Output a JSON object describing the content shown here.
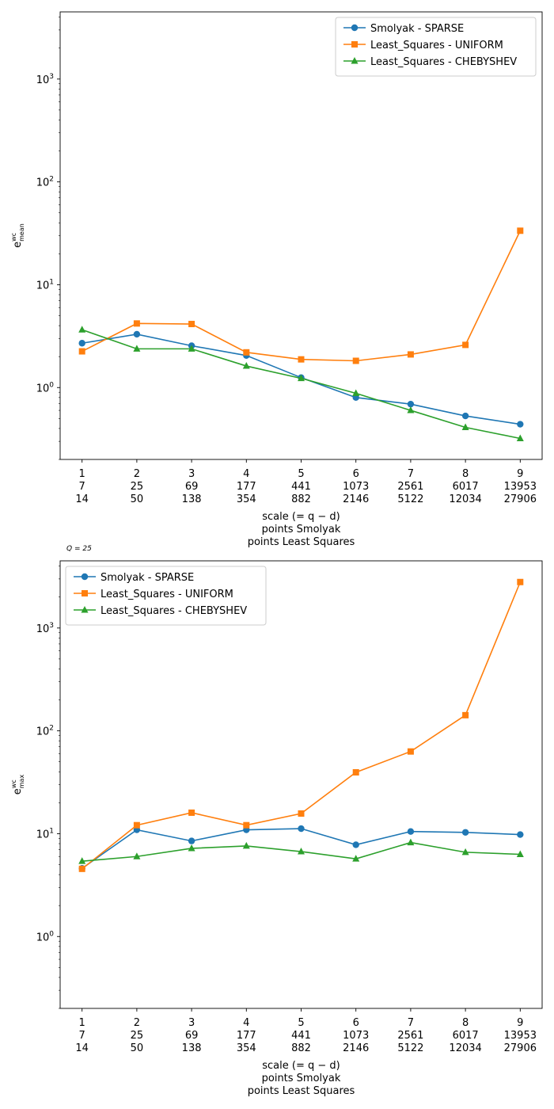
{
  "chart_data": [
    {
      "type": "line",
      "title": "",
      "ylabel_base": "e",
      "ylabel_sup": "wc",
      "ylabel_sub": "mean",
      "yscale": "log",
      "ylim": [
        0.2,
        4500
      ],
      "y_ticks": [
        {
          "value": 1,
          "base": "10",
          "exp": "0"
        },
        {
          "value": 10,
          "base": "10",
          "exp": "1"
        },
        {
          "value": 100,
          "base": "10",
          "exp": "2"
        },
        {
          "value": 1000,
          "base": "10",
          "exp": "3"
        }
      ],
      "x": [
        1,
        2,
        3,
        4,
        5,
        6,
        7,
        8,
        9
      ],
      "x_tick_rows": [
        [
          "1",
          "2",
          "3",
          "4",
          "5",
          "6",
          "7",
          "8",
          "9"
        ],
        [
          "7",
          "25",
          "69",
          "177",
          "441",
          "1073",
          "2561",
          "6017",
          "13953"
        ],
        [
          "14",
          "50",
          "138",
          "354",
          "882",
          "2146",
          "5122",
          "12034",
          "27906"
        ]
      ],
      "xlabel_lines": [
        "scale (= q − d)",
        "points Smolyak",
        "points Least Squares"
      ],
      "legend_position": "upper right",
      "grid": false,
      "series": [
        {
          "name": "Smolyak - SPARSE",
          "marker": "circle",
          "color": "#1f77b4",
          "values": [
            2.7,
            3.3,
            2.55,
            2.05,
            1.25,
            0.8,
            0.69,
            0.53,
            0.44
          ]
        },
        {
          "name": "Least_Squares - UNIFORM",
          "marker": "square",
          "color": "#ff7f0e",
          "values": [
            2.25,
            4.2,
            4.15,
            2.2,
            1.88,
            1.82,
            2.1,
            2.6,
            33.5
          ]
        },
        {
          "name": "Least_Squares - CHEBYSHEV",
          "marker": "triangle",
          "color": "#2ca02c",
          "values": [
            3.65,
            2.38,
            2.38,
            1.62,
            1.23,
            0.88,
            0.6,
            0.41,
            0.32
          ]
        }
      ]
    },
    {
      "type": "line",
      "title": "Q = 25",
      "ylabel_base": "e",
      "ylabel_sup": "wc",
      "ylabel_sub": "max",
      "yscale": "log",
      "ylim": [
        0.2,
        4500
      ],
      "y_ticks": [
        {
          "value": 1,
          "base": "10",
          "exp": "0"
        },
        {
          "value": 10,
          "base": "10",
          "exp": "1"
        },
        {
          "value": 100,
          "base": "10",
          "exp": "2"
        },
        {
          "value": 1000,
          "base": "10",
          "exp": "3"
        }
      ],
      "x": [
        1,
        2,
        3,
        4,
        5,
        6,
        7,
        8,
        9
      ],
      "x_tick_rows": [
        [
          "1",
          "2",
          "3",
          "4",
          "5",
          "6",
          "7",
          "8",
          "9"
        ],
        [
          "7",
          "25",
          "69",
          "177",
          "441",
          "1073",
          "2561",
          "6017",
          "13953"
        ],
        [
          "14",
          "50",
          "138",
          "354",
          "882",
          "2146",
          "5122",
          "12034",
          "27906"
        ]
      ],
      "xlabel_lines": [
        "scale (= q − d)",
        "points Smolyak",
        "points Least Squares"
      ],
      "legend_position": "upper left",
      "grid": false,
      "series": [
        {
          "name": "Smolyak - SPARSE",
          "marker": "circle",
          "color": "#1f77b4",
          "values": [
            4.6,
            10.9,
            8.5,
            10.9,
            11.2,
            7.8,
            10.5,
            10.3,
            9.8
          ]
        },
        {
          "name": "Least_Squares - UNIFORM",
          "marker": "square",
          "color": "#ff7f0e",
          "values": [
            4.55,
            12.1,
            16.0,
            12.1,
            15.7,
            39.5,
            63.0,
            142.0,
            2800.0
          ]
        },
        {
          "name": "Least_Squares - CHEBYSHEV",
          "marker": "triangle",
          "color": "#2ca02c",
          "values": [
            5.4,
            6.0,
            7.2,
            7.6,
            6.7,
            5.7,
            8.2,
            6.6,
            6.3
          ]
        }
      ]
    }
  ]
}
